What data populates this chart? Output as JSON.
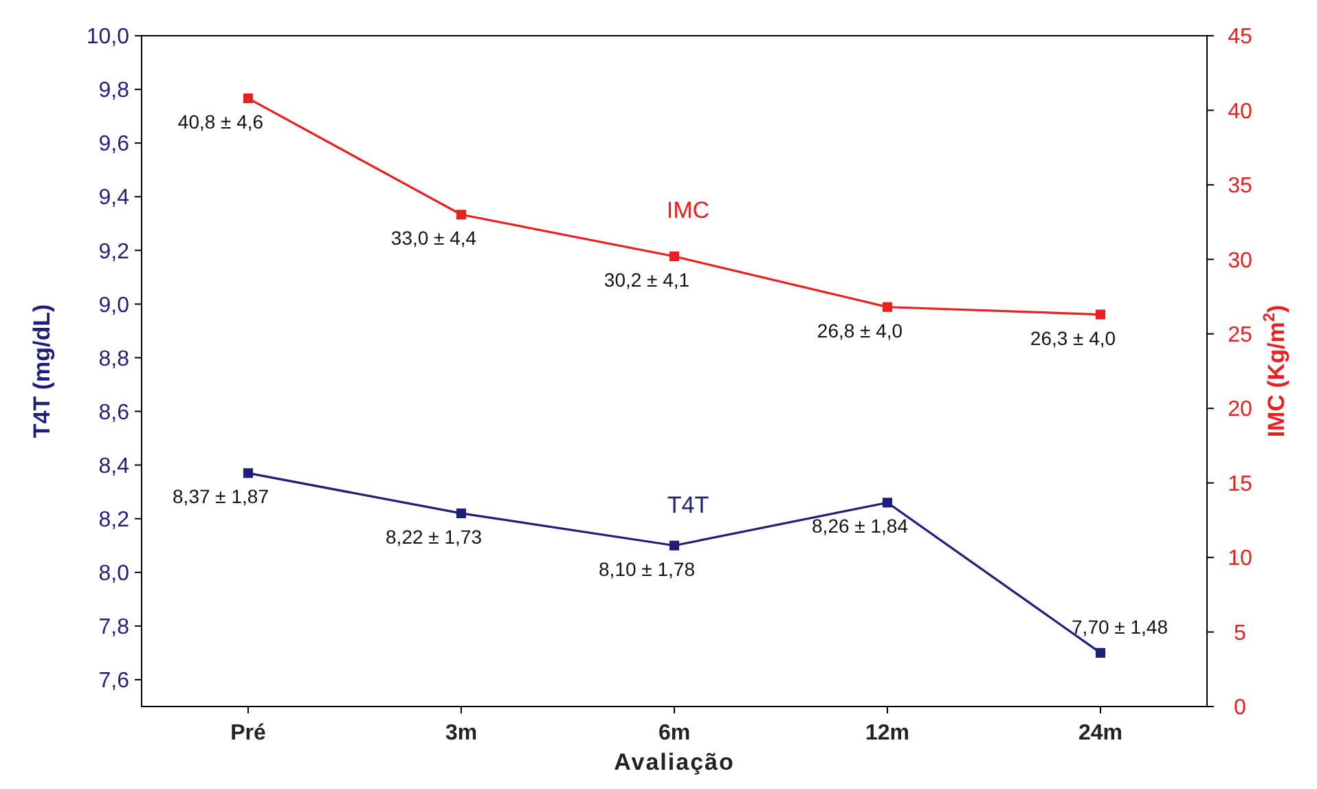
{
  "chart_data": {
    "type": "line",
    "xlabel": "Avaliação",
    "ylabel": "T4T (mg/dL)",
    "y2label": "IMC (Kg/m$^{2}$)",
    "categories": [
      "Pré",
      "3m",
      "6m",
      "12m",
      "24m"
    ],
    "series": [
      {
        "name": "IMC",
        "color": "#e8201f",
        "axis": "y2",
        "values": [
          40.8,
          33.0,
          30.2,
          26.8,
          26.3
        ],
        "value_labels": [
          "40,8 ± 4,6",
          "33,0 ± 4,4",
          "30,2 ± 4,1",
          "26,8 ± 4,0",
          "26,3 ± 4,0"
        ]
      },
      {
        "name": "T4T",
        "color": "#1f1f7a",
        "values": [
          8.37,
          8.22,
          8.1,
          8.26,
          7.7
        ],
        "value_labels": [
          "8,37 ± 1,87",
          "8,22 ± 1,73",
          "8,10 ± 1,78",
          "8,26 ± 1,84",
          "7,70 ± 1,48"
        ]
      }
    ],
    "ylim": [
      7.5,
      10.0
    ],
    "yticks": [
      {
        "value": 7.6,
        "label": "7,6"
      },
      {
        "value": 7.8,
        "label": "7,8"
      },
      {
        "value": 8.0,
        "label": "8,0"
      },
      {
        "value": 8.2,
        "label": "8,2"
      },
      {
        "value": 8.4,
        "label": "8,4"
      },
      {
        "value": 8.6,
        "label": "8,6"
      },
      {
        "value": 8.8,
        "label": "8,8"
      },
      {
        "value": 9.0,
        "label": "9,0"
      },
      {
        "value": 9.2,
        "label": "9,2"
      },
      {
        "value": 9.4,
        "label": "9,4"
      },
      {
        "value": 9.6,
        "label": "9,6"
      },
      {
        "value": 9.8,
        "label": "9,8"
      },
      {
        "value": 10.0,
        "label": "10,0"
      }
    ],
    "y2lim": [
      0,
      45
    ],
    "y2ticks": [
      0,
      5,
      10,
      15,
      20,
      25,
      30,
      35,
      40,
      45
    ],
    "marker": "square",
    "line_style": "solid",
    "grid": false
  }
}
